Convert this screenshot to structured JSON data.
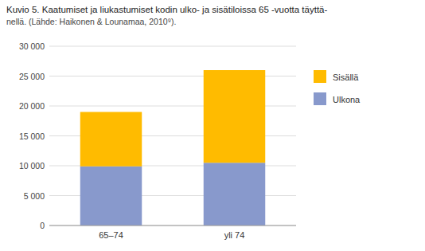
{
  "chart_data": {
    "type": "bar",
    "stacked": true,
    "title": "Kuvio 5. Kaatumiset ja liukastumiset kodin ulko- ja sisätiloissa 65 -vuotta täyttä-",
    "subtitle": "nellä. (Lähde: Haikonen & Lounamaa, 2010⁹).",
    "categories": [
      "65–74",
      "yli 74"
    ],
    "series": [
      {
        "name": "Ulkona",
        "color": "#8899cc",
        "values": [
          9900,
          10500
        ]
      },
      {
        "name": "Sisällä",
        "color": "#ffbb00",
        "values": [
          9100,
          15500
        ]
      }
    ],
    "ylim": [
      0,
      30000
    ],
    "yticks": [
      0,
      {
        "value": 5000,
        "label": "5 000"
      },
      {
        "value": 10000,
        "label": "10 000"
      },
      {
        "value": 15000,
        "label": "15 000"
      },
      {
        "value": 20000,
        "label": "20 000"
      },
      {
        "value": 25000,
        "label": "25 000"
      },
      {
        "value": 30000,
        "label": "30 000"
      }
    ],
    "grid": true,
    "legend": "right"
  }
}
